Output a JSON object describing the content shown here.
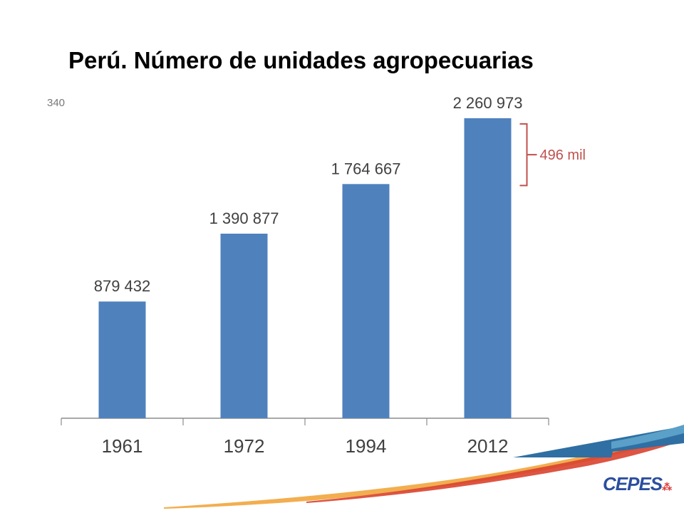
{
  "slide": {
    "title": "Perú. Número de unidades agropecuarias",
    "logo_text": "CEPES",
    "logo_mark": "⁂"
  },
  "chart_data": {
    "type": "bar",
    "title": "",
    "xlabel": "",
    "ylabel": "",
    "categories": [
      "1961",
      "1972",
      "1994",
      "2012"
    ],
    "values": [
      879432,
      1390877,
      1764667,
      2260973
    ],
    "data_labels": [
      "879 432",
      "1 390 877",
      "1 764 667",
      "2 260 973"
    ],
    "axis_tick_fragment": "340",
    "ylim": [
      0,
      2400000
    ],
    "grid": false,
    "legend": "none",
    "bar_color": "#4f81bd",
    "annotation": {
      "label": "496 mil",
      "from_category": "1994",
      "to_category": "2012",
      "color": "#c0504d"
    }
  },
  "decor": {
    "swoosh_blue": "#2f6fa3",
    "swoosh_red": "#d9432f",
    "swoosh_orange": "#f0a030"
  }
}
